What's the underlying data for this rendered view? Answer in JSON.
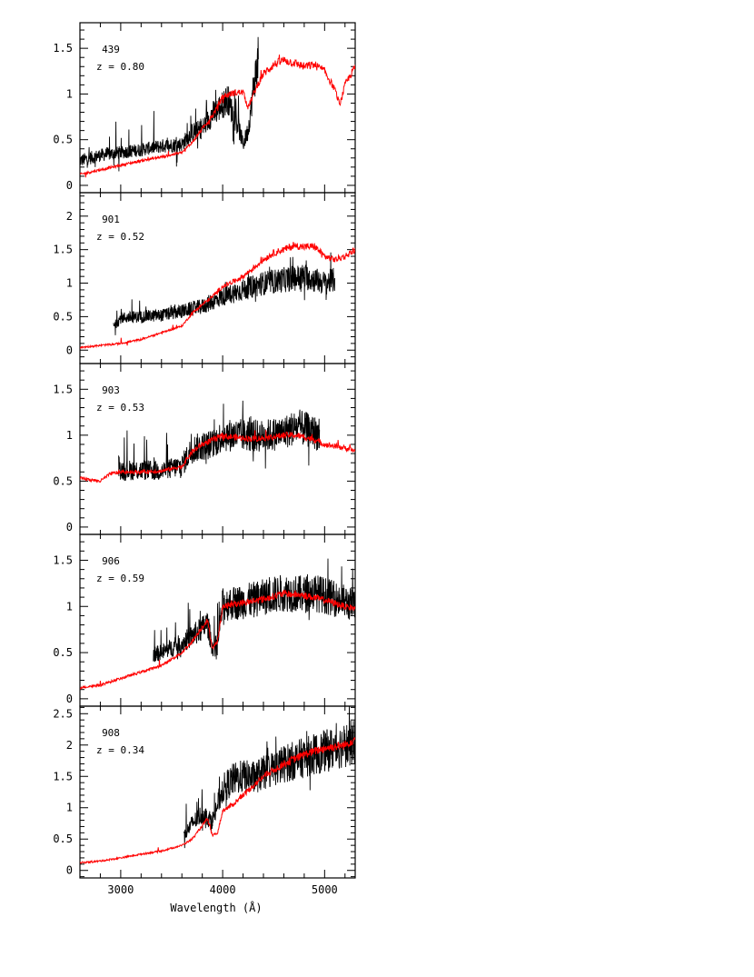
{
  "chart_data": {
    "type": "line",
    "xlabel": "Wavelength (Å)",
    "xlim": [
      2600,
      5300
    ],
    "x_ticks": [
      3000,
      4000,
      5000
    ],
    "series_colors": {
      "observed": "#000000",
      "template": "#ff0000"
    },
    "panels": [
      {
        "id": "439",
        "z_label": "z = 0.80",
        "ylim": [
          -0.08,
          1.78
        ],
        "y_ticks": [
          0,
          0.5,
          1,
          1.5
        ],
        "y_tick_labels": [
          "0",
          "0.5",
          "1",
          "1.5"
        ],
        "template": {
          "x": [
            2600,
            2800,
            3000,
            3200,
            3400,
            3600,
            3700,
            3800,
            3900,
            4000,
            4100,
            4200,
            4250,
            4300,
            4350,
            4400,
            4500,
            4600,
            4700,
            4800,
            4900,
            5000,
            5100,
            5150,
            5200,
            5300
          ],
          "y": [
            0.12,
            0.17,
            0.22,
            0.27,
            0.31,
            0.36,
            0.47,
            0.62,
            0.76,
            0.97,
            1.01,
            1.02,
            0.85,
            0.99,
            1.12,
            1.22,
            1.32,
            1.37,
            1.34,
            1.3,
            1.32,
            1.25,
            1.05,
            0.88,
            1.1,
            1.3
          ]
        },
        "observed": {
          "x": [
            2600,
            2800,
            3000,
            3200,
            3400,
            3600,
            3700,
            3800,
            3850,
            3900,
            4000,
            4050,
            4100,
            4150,
            4200,
            4250,
            4300,
            4350
          ],
          "y": [
            0.27,
            0.33,
            0.36,
            0.39,
            0.43,
            0.45,
            0.58,
            0.62,
            0.7,
            0.78,
            0.88,
            0.95,
            0.78,
            0.66,
            0.45,
            0.6,
            1.05,
            1.4
          ]
        }
      },
      {
        "id": "901",
        "z_label": "z = 0.52",
        "ylim": [
          -0.2,
          2.35
        ],
        "y_ticks": [
          0,
          0.5,
          1,
          1.5,
          2
        ],
        "y_tick_labels": [
          "0",
          "0.5",
          "1",
          "1.5",
          "2"
        ],
        "template": {
          "x": [
            2600,
            2800,
            3000,
            3200,
            3400,
            3600,
            3700,
            3800,
            3900,
            4000,
            4100,
            4200,
            4300,
            4400,
            4500,
            4600,
            4700,
            4800,
            4900,
            5000,
            5100,
            5200,
            5300
          ],
          "y": [
            0.04,
            0.07,
            0.1,
            0.16,
            0.26,
            0.36,
            0.55,
            0.68,
            0.8,
            0.95,
            1.02,
            1.1,
            1.22,
            1.35,
            1.45,
            1.5,
            1.56,
            1.54,
            1.55,
            1.4,
            1.35,
            1.4,
            1.5
          ]
        },
        "observed": {
          "x": [
            2930,
            3000,
            3200,
            3400,
            3600,
            3800,
            4000,
            4200,
            4400,
            4600,
            4800,
            5000,
            5100
          ],
          "y": [
            0.35,
            0.48,
            0.5,
            0.52,
            0.58,
            0.65,
            0.8,
            0.9,
            1.0,
            1.05,
            1.1,
            1.0,
            1.05
          ]
        }
      },
      {
        "id": "903",
        "z_label": "z = 0.53",
        "ylim": [
          -0.08,
          1.78
        ],
        "y_ticks": [
          0,
          0.5,
          1,
          1.5
        ],
        "y_tick_labels": [
          "0",
          "0.5",
          "1",
          "1.5"
        ],
        "template": {
          "x": [
            2600,
            2800,
            2900,
            3000,
            3200,
            3400,
            3600,
            3700,
            3800,
            3900,
            4000,
            4100,
            4200,
            4300,
            4400,
            4500,
            4600,
            4700,
            4800,
            4900,
            5000,
            5100,
            5200,
            5300
          ],
          "y": [
            0.53,
            0.5,
            0.58,
            0.6,
            0.6,
            0.61,
            0.66,
            0.82,
            0.9,
            0.95,
            0.99,
            0.98,
            0.97,
            0.96,
            0.97,
            0.98,
            1.0,
            1.0,
            0.98,
            0.95,
            0.9,
            0.88,
            0.86,
            0.83
          ]
        },
        "observed": {
          "x": [
            2980,
            3000,
            3200,
            3400,
            3600,
            3700,
            3800,
            3900,
            4000,
            4200,
            4400,
            4600,
            4700,
            4800,
            4900,
            4950
          ],
          "y": [
            0.68,
            0.62,
            0.62,
            0.61,
            0.67,
            0.85,
            0.88,
            0.9,
            1.0,
            1.0,
            0.99,
            1.03,
            1.08,
            1.07,
            1.03,
            1.0
          ]
        }
      },
      {
        "id": "906",
        "z_label": "z = 0.59",
        "ylim": [
          -0.08,
          1.78
        ],
        "y_ticks": [
          0,
          0.5,
          1,
          1.5
        ],
        "y_tick_labels": [
          "0",
          "0.5",
          "1",
          "1.5"
        ],
        "template": {
          "x": [
            2600,
            2800,
            3000,
            3200,
            3400,
            3600,
            3700,
            3800,
            3850,
            3900,
            3950,
            4000,
            4200,
            4400,
            4600,
            4800,
            5000,
            5200,
            5300
          ],
          "y": [
            0.12,
            0.15,
            0.22,
            0.29,
            0.36,
            0.5,
            0.62,
            0.78,
            0.85,
            0.55,
            0.62,
            1.0,
            1.04,
            1.08,
            1.14,
            1.12,
            1.07,
            1.0,
            0.98
          ]
        },
        "observed": {
          "x": [
            3320,
            3400,
            3600,
            3700,
            3800,
            3850,
            3900,
            3950,
            4000,
            4200,
            4400,
            4600,
            4800,
            4900,
            5000,
            5100,
            5200,
            5300
          ],
          "y": [
            0.48,
            0.5,
            0.6,
            0.68,
            0.76,
            0.82,
            0.55,
            0.6,
            1.02,
            1.05,
            1.1,
            1.15,
            1.13,
            1.15,
            1.12,
            1.08,
            1.05,
            1.0
          ]
        }
      },
      {
        "id": "908",
        "z_label": "z = 0.34",
        "ylim": [
          -0.12,
          2.62
        ],
        "y_ticks": [
          0,
          0.5,
          1,
          1.5,
          2,
          2.5
        ],
        "y_tick_labels": [
          "0",
          "0.5",
          "1",
          "1.5",
          "2",
          "2.5"
        ],
        "template": {
          "x": [
            2600,
            2800,
            3000,
            3200,
            3400,
            3600,
            3700,
            3750,
            3800,
            3850,
            3900,
            3950,
            4000,
            4100,
            4200,
            4300,
            4400,
            4600,
            4800,
            5000,
            5200,
            5300
          ],
          "y": [
            0.12,
            0.15,
            0.2,
            0.26,
            0.31,
            0.4,
            0.5,
            0.6,
            0.72,
            0.82,
            0.55,
            0.6,
            0.95,
            1.05,
            1.2,
            1.35,
            1.5,
            1.7,
            1.85,
            1.95,
            2.0,
            2.1
          ]
        },
        "observed": {
          "x": [
            3620,
            3700,
            3800,
            3900,
            4000,
            4100,
            4200,
            4300,
            4400,
            4600,
            4800,
            5000,
            5200,
            5300
          ],
          "y": [
            0.55,
            0.75,
            0.9,
            0.8,
            1.3,
            1.45,
            1.5,
            1.48,
            1.55,
            1.7,
            1.8,
            1.9,
            2.0,
            2.05
          ]
        }
      }
    ]
  }
}
